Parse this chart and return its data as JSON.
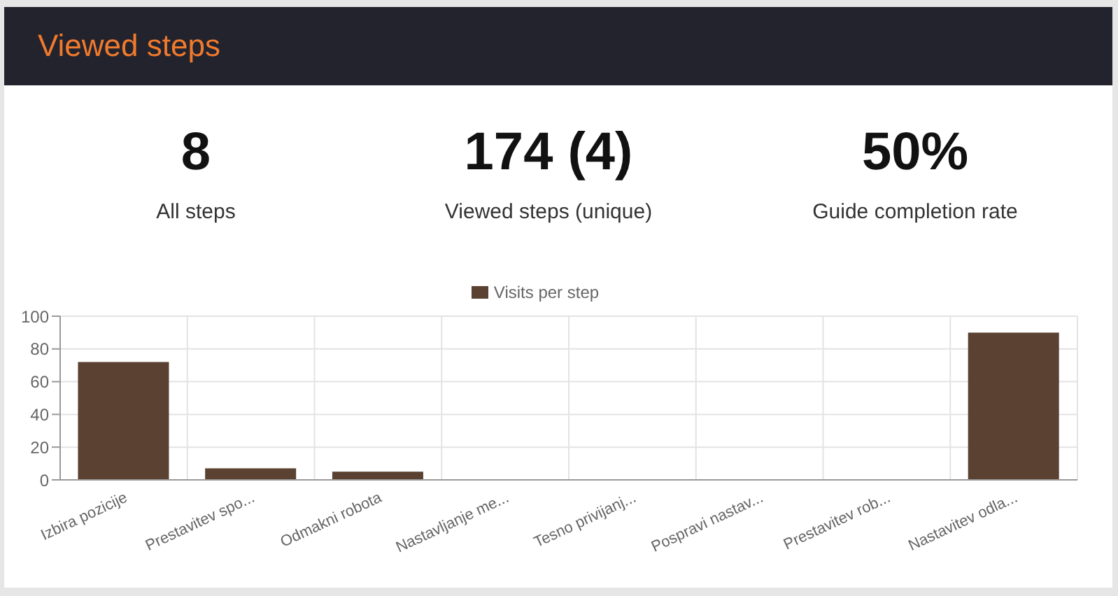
{
  "chart_data": [
    {
      "type": "other",
      "title": "Viewed steps",
      "annotations": [
        "8",
        "All steps",
        "174 (4)",
        "Viewed steps (unique)",
        "50%",
        "Guide completion rate"
      ]
    },
    {
      "type": "bar",
      "categories": [
        "Izbira pozicije",
        "Prestavitev spo...",
        "Odmakni robota",
        "Nastavljanje me...",
        "Tesno privijanj...",
        "Pospravi nastav...",
        "Prestavitev rob...",
        "Nastavitev odla..."
      ],
      "series": [
        {
          "name": "Visits per step",
          "color": "#5a4131",
          "values": [
            72,
            7,
            5,
            0,
            0,
            0,
            0,
            90
          ]
        }
      ],
      "ylim": [
        0,
        100
      ],
      "yticks": [
        0,
        20,
        40,
        60,
        80,
        100
      ],
      "grid": true,
      "legend": "top"
    }
  ]
}
